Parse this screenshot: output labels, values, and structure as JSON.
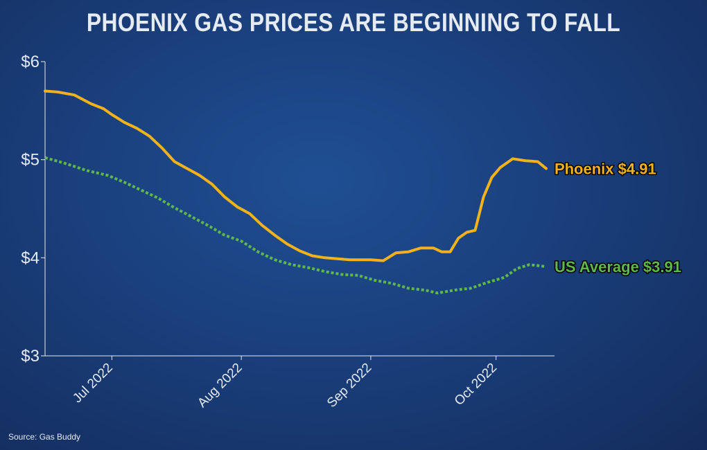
{
  "title": "PHOENIX GAS PRICES ARE BEGINNING TO FALL",
  "source": "Source: Gas Buddy",
  "colors": {
    "phoenix": "#f2b21c",
    "us_average": "#5fb84a",
    "axis": "#e6ebf2"
  },
  "chart_data": {
    "type": "line",
    "title": "PHOENIX GAS PRICES ARE BEGINNING TO FALL",
    "xlabel": "",
    "ylabel": "",
    "ylim": [
      3,
      6
    ],
    "xlim": [
      "2022-06-15",
      "2022-10-15"
    ],
    "yticks": [
      3,
      4,
      5,
      6
    ],
    "ytick_labels": [
      "$3",
      "$4",
      "$5",
      "$6"
    ],
    "xticks": [
      "2022-07-01",
      "2022-08-01",
      "2022-09-01",
      "2022-10-01"
    ],
    "xtick_labels": [
      "Jul 2022",
      "Aug 2022",
      "Sep 2022",
      "Oct 2022"
    ],
    "grid": false,
    "series": [
      {
        "name": "Phoenix",
        "end_label": "Phoenix $4.91",
        "style": "solid",
        "points": [
          [
            "2022-06-15",
            5.7
          ],
          [
            "2022-06-18",
            5.69
          ],
          [
            "2022-06-22",
            5.66
          ],
          [
            "2022-06-26",
            5.57
          ],
          [
            "2022-06-29",
            5.52
          ],
          [
            "2022-07-01",
            5.46
          ],
          [
            "2022-07-04",
            5.38
          ],
          [
            "2022-07-07",
            5.32
          ],
          [
            "2022-07-10",
            5.24
          ],
          [
            "2022-07-13",
            5.12
          ],
          [
            "2022-07-16",
            4.98
          ],
          [
            "2022-07-19",
            4.91
          ],
          [
            "2022-07-22",
            4.84
          ],
          [
            "2022-07-25",
            4.75
          ],
          [
            "2022-07-28",
            4.62
          ],
          [
            "2022-07-31",
            4.52
          ],
          [
            "2022-08-03",
            4.45
          ],
          [
            "2022-08-06",
            4.33
          ],
          [
            "2022-08-09",
            4.23
          ],
          [
            "2022-08-12",
            4.14
          ],
          [
            "2022-08-15",
            4.07
          ],
          [
            "2022-08-18",
            4.02
          ],
          [
            "2022-08-21",
            4.0
          ],
          [
            "2022-08-24",
            3.99
          ],
          [
            "2022-08-27",
            3.98
          ],
          [
            "2022-08-30",
            3.98
          ],
          [
            "2022-09-01",
            3.98
          ],
          [
            "2022-09-04",
            3.97
          ],
          [
            "2022-09-07",
            4.05
          ],
          [
            "2022-09-10",
            4.06
          ],
          [
            "2022-09-13",
            4.1
          ],
          [
            "2022-09-16",
            4.1
          ],
          [
            "2022-09-18",
            4.06
          ],
          [
            "2022-09-20",
            4.06
          ],
          [
            "2022-09-22",
            4.2
          ],
          [
            "2022-09-24",
            4.26
          ],
          [
            "2022-09-26",
            4.28
          ],
          [
            "2022-09-28",
            4.62
          ],
          [
            "2022-09-30",
            4.82
          ],
          [
            "2022-10-02",
            4.92
          ],
          [
            "2022-10-05",
            5.01
          ],
          [
            "2022-10-08",
            4.99
          ],
          [
            "2022-10-11",
            4.98
          ],
          [
            "2022-10-13",
            4.91
          ]
        ]
      },
      {
        "name": "US Average",
        "end_label": "US Average $3.91",
        "style": "dotted",
        "points": [
          [
            "2022-06-15",
            5.02
          ],
          [
            "2022-06-20",
            4.96
          ],
          [
            "2022-06-25",
            4.89
          ],
          [
            "2022-06-30",
            4.84
          ],
          [
            "2022-07-04",
            4.77
          ],
          [
            "2022-07-08",
            4.69
          ],
          [
            "2022-07-12",
            4.61
          ],
          [
            "2022-07-16",
            4.51
          ],
          [
            "2022-07-20",
            4.42
          ],
          [
            "2022-07-24",
            4.33
          ],
          [
            "2022-07-28",
            4.23
          ],
          [
            "2022-08-01",
            4.17
          ],
          [
            "2022-08-05",
            4.06
          ],
          [
            "2022-08-09",
            3.98
          ],
          [
            "2022-08-13",
            3.93
          ],
          [
            "2022-08-17",
            3.9
          ],
          [
            "2022-08-21",
            3.86
          ],
          [
            "2022-08-25",
            3.83
          ],
          [
            "2022-08-29",
            3.82
          ],
          [
            "2022-09-02",
            3.77
          ],
          [
            "2022-09-06",
            3.74
          ],
          [
            "2022-09-10",
            3.69
          ],
          [
            "2022-09-14",
            3.67
          ],
          [
            "2022-09-17",
            3.64
          ],
          [
            "2022-09-21",
            3.67
          ],
          [
            "2022-09-25",
            3.69
          ],
          [
            "2022-09-29",
            3.75
          ],
          [
            "2022-10-03",
            3.8
          ],
          [
            "2022-10-06",
            3.89
          ],
          [
            "2022-10-09",
            3.93
          ],
          [
            "2022-10-13",
            3.91
          ]
        ]
      }
    ]
  }
}
